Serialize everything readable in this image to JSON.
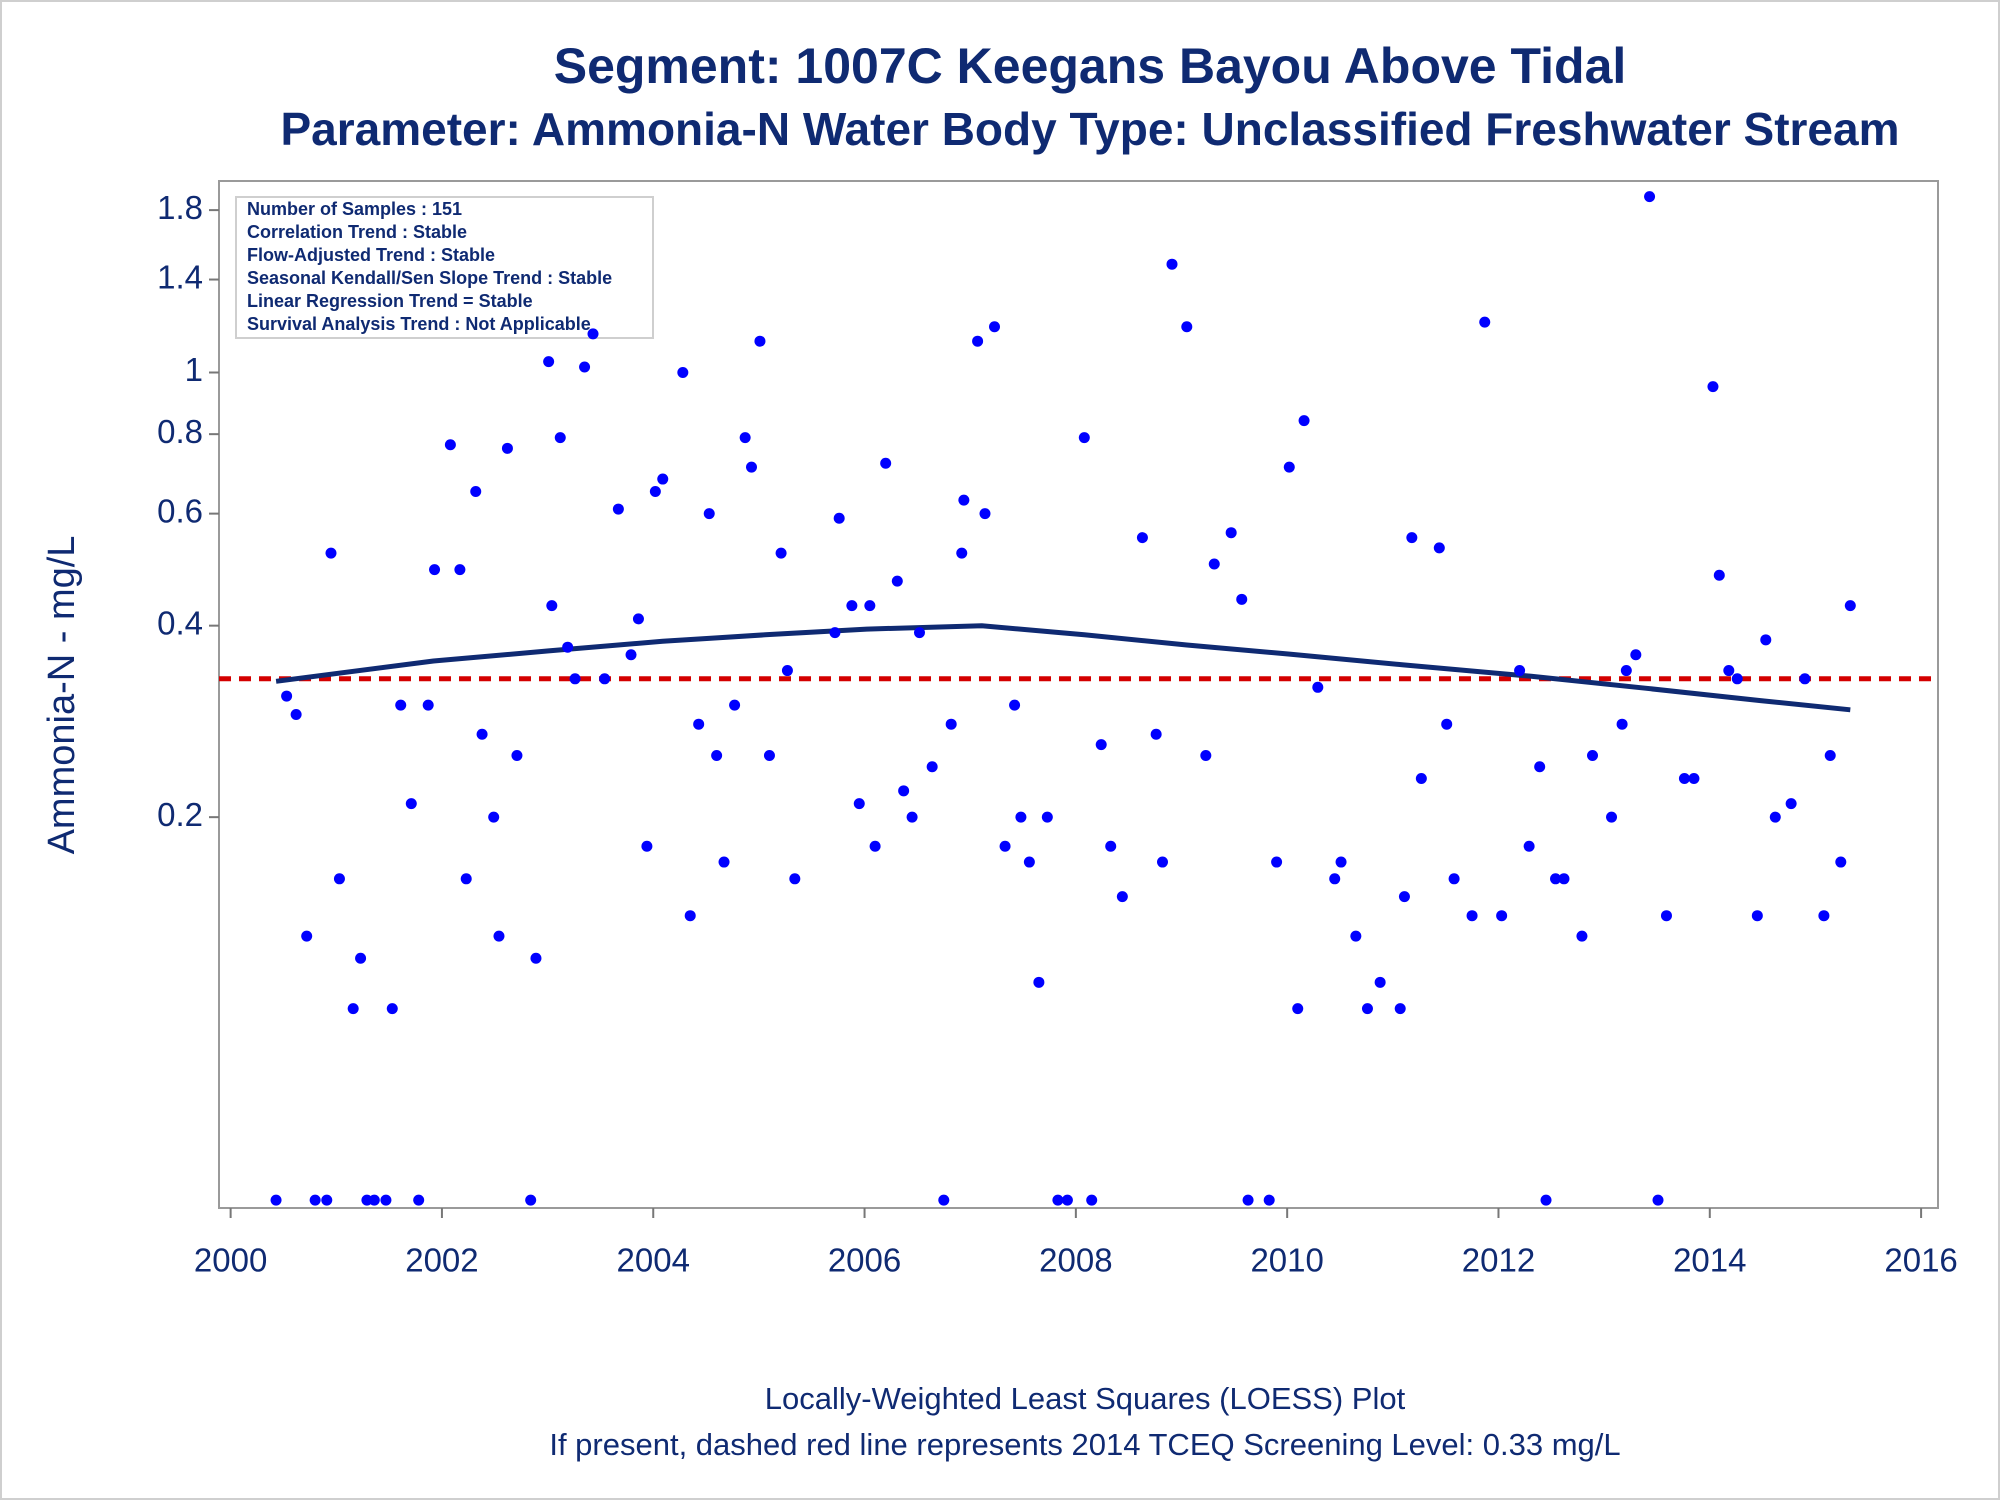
{
  "chart_data": {
    "type": "scatter",
    "title": "Segment: 1007C  Keegans Bayou Above Tidal",
    "subtitle": "Parameter: Ammonia-N   Water Body Type: Unclassified Freshwater Stream",
    "y_label": "Ammonia-N - mg/L",
    "notes": [
      "Locally-Weighted Least Squares (LOESS) Plot",
      "If present, dashed red line represents 2014 TCEQ Screening Level: 0.33 mg/L"
    ],
    "stats_box": [
      "Number of Samples : 151",
      "Correlation Trend : Stable",
      "Flow-Adjusted Trend : Stable",
      "Seasonal Kendall/Sen Slope Trend : Stable",
      "Linear Regression Trend = Stable",
      "Survival Analysis Trend : Not Applicable"
    ],
    "log_y": true,
    "grid": false,
    "xlim": [
      1999.89,
      2016.16
    ],
    "xticks": [
      2000,
      2002,
      2004,
      2006,
      2008,
      2010,
      2012,
      2014,
      2016
    ],
    "ylim": [
      0.0486,
      2.0
    ],
    "yticks": [
      0.2,
      0.4,
      0.6,
      0.8,
      1,
      1.4,
      1.8
    ],
    "points": {
      "color": "#0000ff",
      "x": [
        2000.43,
        2000.53,
        2000.62,
        2000.72,
        2000.8,
        2000.91,
        2000.95,
        2001.03,
        2001.16,
        2001.23,
        2001.29,
        2001.36,
        2001.47,
        2001.53,
        2001.61,
        2001.71,
        2001.78,
        2001.87,
        2001.93,
        2002.08,
        2002.17,
        2002.23,
        2002.32,
        2002.38,
        2002.49,
        2002.54,
        2002.62,
        2002.71,
        2002.84,
        2002.89,
        2003.01,
        2003.04,
        2003.12,
        2003.19,
        2003.26,
        2003.35,
        2003.43,
        2003.54,
        2003.67,
        2003.79,
        2003.86,
        2003.94,
        2004.02,
        2004.09,
        2004.28,
        2004.35,
        2004.43,
        2004.53,
        2004.6,
        2004.67,
        2004.77,
        2004.87,
        2004.93,
        2005.01,
        2005.1,
        2005.21,
        2005.27,
        2005.34,
        2005.72,
        2005.76,
        2005.88,
        2005.95,
        2006.05,
        2006.1,
        2006.2,
        2006.31,
        2006.37,
        2006.45,
        2006.52,
        2006.64,
        2006.75,
        2006.82,
        2006.92,
        2006.94,
        2007.07,
        2007.14,
        2007.23,
        2007.33,
        2007.42,
        2007.48,
        2007.56,
        2007.65,
        2007.73,
        2007.83,
        2007.92,
        2008.08,
        2008.15,
        2008.24,
        2008.33,
        2008.44,
        2008.63,
        2008.76,
        2008.82,
        2008.91,
        2009.05,
        2009.23,
        2009.31,
        2009.47,
        2009.57,
        2009.63,
        2009.83,
        2009.9,
        2010.02,
        2010.1,
        2010.16,
        2010.29,
        2010.45,
        2010.51,
        2010.65,
        2010.76,
        2010.88,
        2011.07,
        2011.11,
        2011.18,
        2011.27,
        2011.44,
        2011.51,
        2011.58,
        2011.75,
        2011.87,
        2012.03,
        2012.2,
        2012.29,
        2012.39,
        2012.45,
        2012.54,
        2012.62,
        2012.79,
        2012.89,
        2013.07,
        2013.17,
        2013.21,
        2013.3,
        2013.43,
        2013.51,
        2013.59,
        2013.76,
        2013.85,
        2014.03,
        2014.09,
        2014.18,
        2014.26,
        2014.45,
        2014.53,
        2014.62,
        2014.77,
        2014.9,
        2015.08,
        2015.14,
        2015.24,
        2015.33
      ],
      "values": [
        0.05,
        0.31,
        0.29,
        0.13,
        0.05,
        0.05,
        0.52,
        0.16,
        0.1,
        0.12,
        0.05,
        0.05,
        0.05,
        0.1,
        0.3,
        0.21,
        0.05,
        0.3,
        0.49,
        0.77,
        0.49,
        0.16,
        0.65,
        0.27,
        0.2,
        0.13,
        0.76,
        0.25,
        0.05,
        0.12,
        1.04,
        0.43,
        0.79,
        0.37,
        0.33,
        1.02,
        1.15,
        0.33,
        0.61,
        0.36,
        0.41,
        0.18,
        0.65,
        0.68,
        1.0,
        0.14,
        0.28,
        0.6,
        0.25,
        0.17,
        0.3,
        0.79,
        0.71,
        1.12,
        0.25,
        0.52,
        0.34,
        0.16,
        0.39,
        0.59,
        0.43,
        0.21,
        0.43,
        0.18,
        0.72,
        0.47,
        0.22,
        0.2,
        0.39,
        0.24,
        0.05,
        0.28,
        0.52,
        0.63,
        1.12,
        0.6,
        1.18,
        0.18,
        0.3,
        0.2,
        0.17,
        0.11,
        0.2,
        0.05,
        0.05,
        0.79,
        0.05,
        0.26,
        0.18,
        0.15,
        0.55,
        0.27,
        0.17,
        1.48,
        1.18,
        0.25,
        0.5,
        0.56,
        0.44,
        0.05,
        0.05,
        0.17,
        0.71,
        0.1,
        0.84,
        0.32,
        0.16,
        0.17,
        0.13,
        0.1,
        0.11,
        0.1,
        0.15,
        0.55,
        0.23,
        0.53,
        0.28,
        0.16,
        0.14,
        1.2,
        0.14,
        0.34,
        0.18,
        0.24,
        0.05,
        0.16,
        0.16,
        0.13,
        0.25,
        0.2,
        0.28,
        0.34,
        0.36,
        1.89,
        0.05,
        0.14,
        0.23,
        0.23,
        0.95,
        0.48,
        0.34,
        0.33,
        0.14,
        0.38,
        0.2,
        0.21,
        0.33,
        0.14,
        0.25,
        0.17,
        0.43
      ]
    },
    "loess": {
      "color": "#0f2a72",
      "x": [
        2000.43,
        2001.92,
        2003.01,
        2004.09,
        2005.06,
        2006.02,
        2007.11,
        2008.08,
        2009.05,
        2010.01,
        2011.1,
        2012.31,
        2013.39,
        2014.48,
        2015.33
      ],
      "values": [
        0.327,
        0.352,
        0.365,
        0.378,
        0.387,
        0.395,
        0.4,
        0.387,
        0.373,
        0.361,
        0.347,
        0.333,
        0.319,
        0.305,
        0.295
      ]
    },
    "reference_line": {
      "value": 0.33,
      "color": "#d40000"
    }
  }
}
